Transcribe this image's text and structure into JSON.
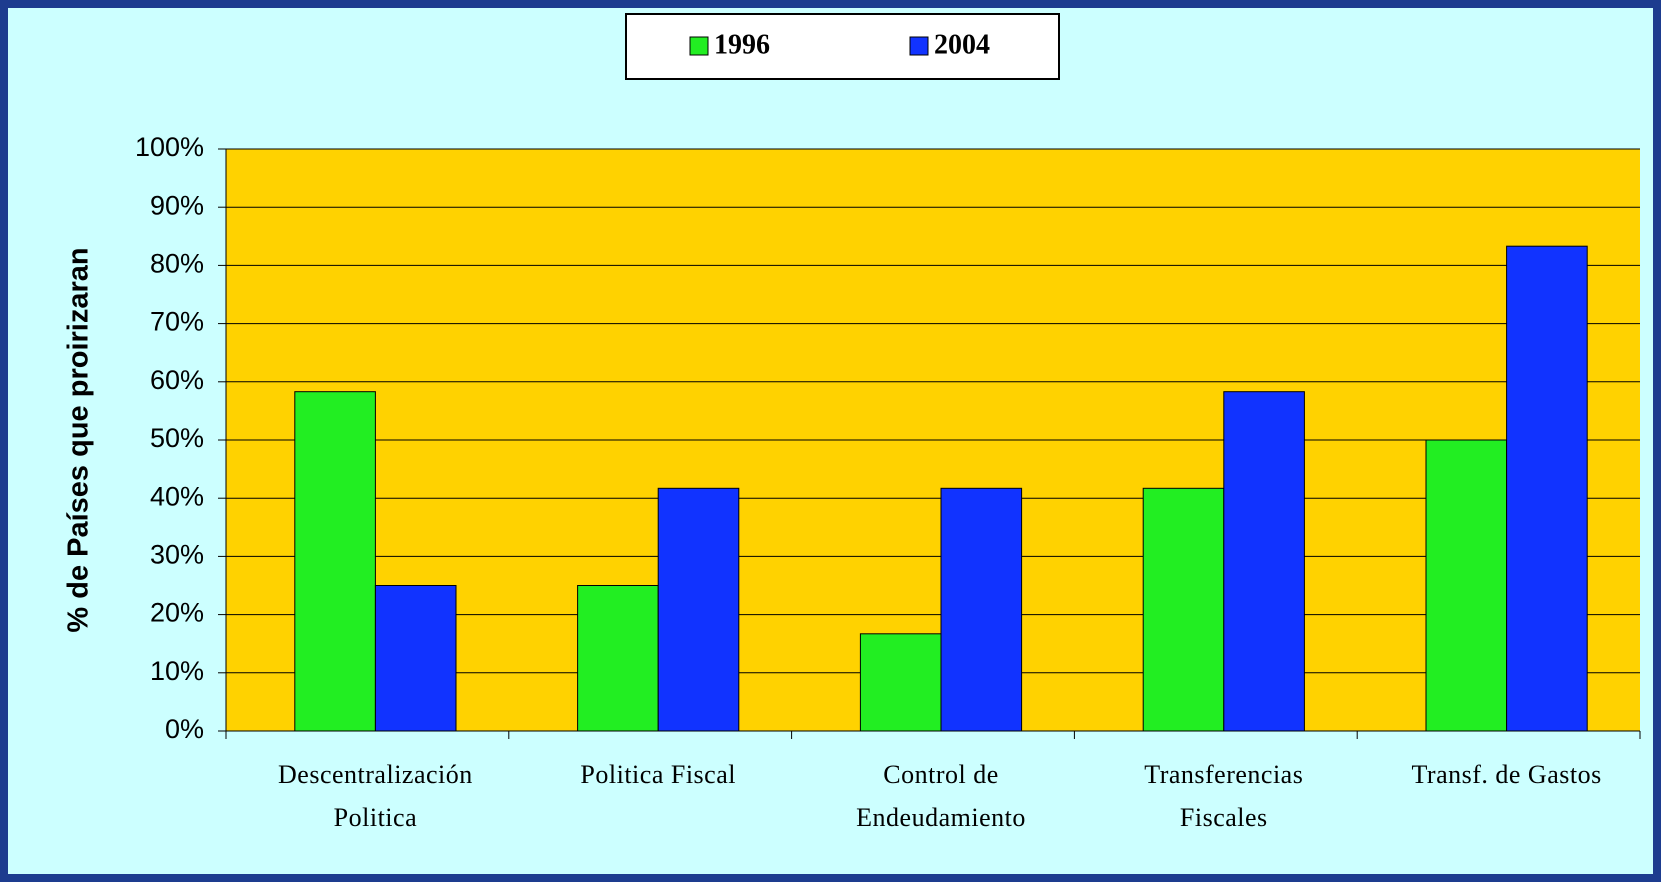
{
  "chart_data": {
    "type": "bar",
    "y_label": "% de Países que proirizaran",
    "categories": [
      [
        "Descentralización",
        "Politica"
      ],
      [
        "Politica Fiscal"
      ],
      [
        "Control de",
        "Endeudamiento"
      ],
      [
        "Transferencias",
        "Fiscales"
      ],
      [
        "Transf. de Gastos"
      ]
    ],
    "series": [
      {
        "name": "1996",
        "color": "#22ee22",
        "values": [
          58.3,
          25,
          16.7,
          41.7,
          50
        ]
      },
      {
        "name": "2004",
        "color": "#1133ff",
        "values": [
          25,
          41.7,
          41.7,
          58.3,
          83.3
        ]
      }
    ],
    "ylim": [
      0,
      100
    ],
    "yticks": [
      {
        "value": 0,
        "label": "0%"
      },
      {
        "value": 10,
        "label": "10%"
      },
      {
        "value": 20,
        "label": "20%"
      },
      {
        "value": 30,
        "label": "30%"
      },
      {
        "value": 40,
        "label": "40%"
      },
      {
        "value": 50,
        "label": "50%"
      },
      {
        "value": 60,
        "label": "60%"
      },
      {
        "value": 70,
        "label": "70%"
      },
      {
        "value": 80,
        "label": "80%"
      },
      {
        "value": 90,
        "label": "90%"
      },
      {
        "value": 100,
        "label": "100%"
      }
    ],
    "grid": true,
    "legend": "top"
  }
}
